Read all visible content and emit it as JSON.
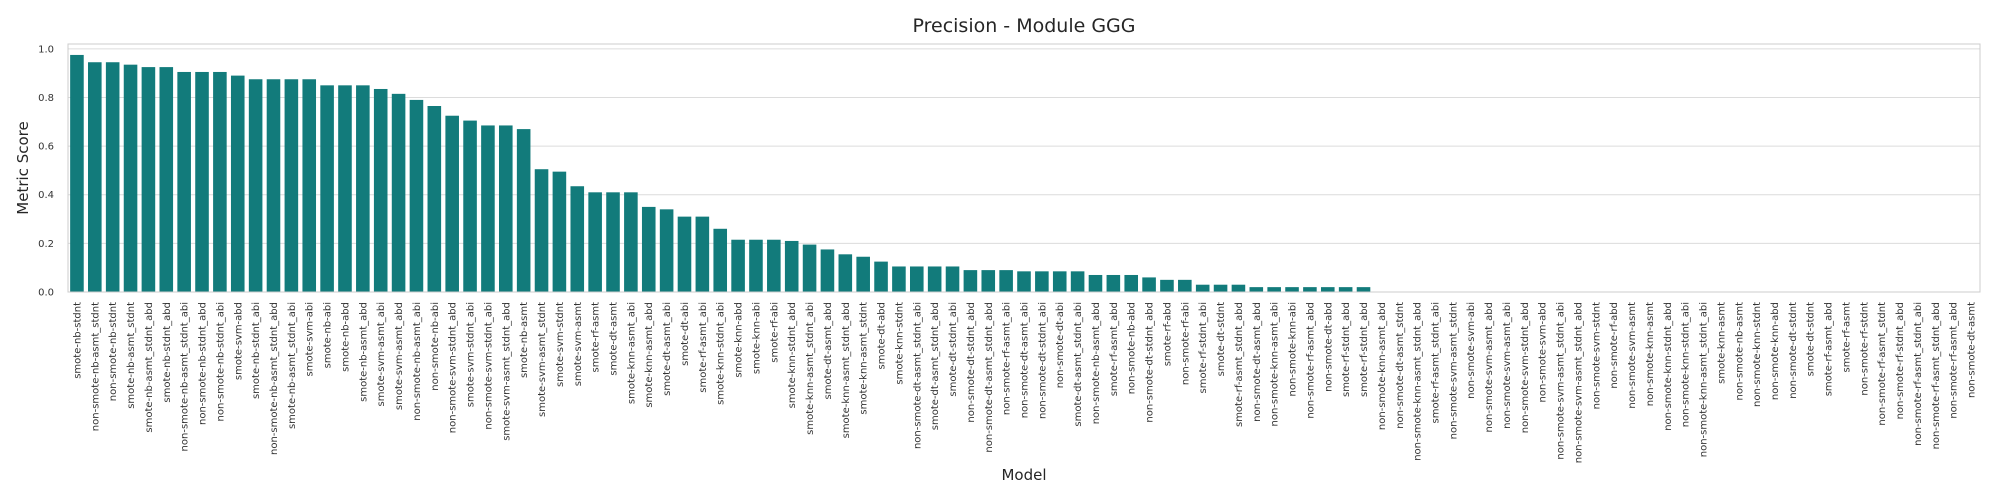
{
  "chart_data": {
    "type": "bar",
    "title": "Precision - Module GGG",
    "xlabel": "Model",
    "ylabel": "Metric Score",
    "ylim": [
      0,
      1.02
    ],
    "yticks": [
      "0.0",
      "0.2",
      "0.4",
      "0.6",
      "0.8",
      "1.0"
    ],
    "grid": true,
    "bar_color": "#127B7B",
    "categories": [
      "smote-nb-stdnt",
      "non-smote-nb-asmt_stdnt",
      "non-smote-nb-stdnt",
      "smote-nb-asmt_stdnt",
      "smote-nb-asmt_stdnt_abd",
      "smote-nb-stdnt_abd",
      "non-smote-nb-asmt_stdnt_abi",
      "non-smote-nb-stdnt_abd",
      "non-smote-nb-stdnt_abi",
      "smote-svm-abd",
      "smote-nb-stdnt_abi",
      "non-smote-nb-asmt_stdnt_abd",
      "smote-nb-asmt_stdnt_abi",
      "smote-svm-abi",
      "smote-nb-abi",
      "smote-nb-abd",
      "smote-nb-asmt_abd",
      "smote-svm-asmt_abi",
      "smote-svm-asmt_abd",
      "non-smote-nb-asmt_abi",
      "non-smote-nb-abi",
      "non-smote-svm-stdnt_abd",
      "smote-svm-stdnt_abi",
      "non-smote-svm-stdnt_abi",
      "smote-svm-asmt_stdnt_abd",
      "smote-nb-asmt",
      "smote-svm-asmt_stdnt",
      "smote-svm-stdnt",
      "smote-svm-asmt",
      "smote-rf-asmt",
      "smote-dt-asmt",
      "smote-knn-asmt_abi",
      "smote-knn-asmt_abd",
      "smote-dt-asmt_abi",
      "smote-dt-abi",
      "smote-rf-asmt_abi",
      "smote-knn-stdnt_abi",
      "smote-knn-abd",
      "smote-knn-abi",
      "smote-rf-abi",
      "smote-knn-stdnt_abd",
      "smote-knn-asmt_stdnt_abi",
      "smote-dt-asmt_abd",
      "smote-knn-asmt_stdnt_abd",
      "smote-knn-asmt_stdnt",
      "smote-dt-abd",
      "smote-knn-stdnt",
      "non-smote-dt-asmt_stdnt_abi",
      "smote-dt-asmt_stdnt_abd",
      "smote-dt-stdnt_abi",
      "non-smote-dt-stdnt_abd",
      "non-smote-dt-asmt_stdnt_abd",
      "non-smote-rf-asmt_abi",
      "non-smote-dt-asmt_abi",
      "non-smote-dt-stdnt_abi",
      "non-smote-dt-abi",
      "smote-dt-asmt_stdnt_abi",
      "non-smote-nb-asmt_abd",
      "smote-rf-asmt_abd",
      "non-smote-nb-abd",
      "non-smote-dt-stdnt_abd",
      "smote-rf-abd",
      "non-smote-rf-abi",
      "smote-rf-stdnt_abi",
      "smote-dt-stdnt",
      "smote-rf-asmt_stdnt_abd",
      "non-smote-dt-asmt_abd",
      "non-smote-knn-asmt_abi",
      "non-smote-knn-abi",
      "non-smote-rf-asmt_abd",
      "non-smote-dt-abd",
      "smote-rf-stdnt_abd",
      "smote-rf-stdnt_abd",
      "non-smote-knn-asmt_abd",
      "non-smote-dt-asmt_stdnt",
      "non-smote-knn-asmt_stdnt_abd",
      "smote-rf-asmt_stdnt_abi",
      "non-smote-svm-asmt_stdnt",
      "non-smote-svm-abi",
      "non-smote-svm-asmt_abd",
      "non-smote-svm-asmt_abi",
      "non-smote-svm-stdnt_abd",
      "non-smote-svm-abd",
      "non-smote-svm-asmt_stdnt_abi",
      "non-smote-svm-asmt_stdnt_abd",
      "non-smote-svm-stdnt",
      "non-smote-rf-abd",
      "non-smote-svm-asmt",
      "non-smote-knn-asmt",
      "non-smote-knn-stdnt_abd",
      "non-smote-knn-stdnt_abi",
      "non-smote-knn-asmt_stdnt_abi",
      "smote-knn-asmt",
      "non-smote-nb-asmt",
      "non-smote-knn-stdnt",
      "non-smote-knn-abd",
      "non-smote-dt-stdnt",
      "smote-dt-stdnt",
      "smote-rf-asmt_abd",
      "smote-rf-asmt",
      "non-smote-rf-stdnt",
      "non-smote-rf-asmt_stdnt",
      "non-smote-rf-stdnt_abd",
      "non-smote-rf-asmt_stdnt_abi",
      "non-smote-rf-asmt_stdnt_abd",
      "non-smote-rf-asmt_abd",
      "non-smote-dt-asmt"
    ],
    "values": [
      0.975,
      0.945,
      0.945,
      0.935,
      0.925,
      0.925,
      0.905,
      0.905,
      0.905,
      0.89,
      0.875,
      0.875,
      0.875,
      0.875,
      0.85,
      0.85,
      0.85,
      0.835,
      0.815,
      0.79,
      0.765,
      0.725,
      0.705,
      0.685,
      0.685,
      0.67,
      0.505,
      0.495,
      0.435,
      0.41,
      0.41,
      0.41,
      0.35,
      0.34,
      0.31,
      0.31,
      0.26,
      0.215,
      0.215,
      0.215,
      0.21,
      0.195,
      0.175,
      0.155,
      0.145,
      0.125,
      0.105,
      0.105,
      0.105,
      0.105,
      0.09,
      0.09,
      0.09,
      0.085,
      0.085,
      0.085,
      0.085,
      0.07,
      0.07,
      0.07,
      0.06,
      0.05,
      0.05,
      0.03,
      0.03,
      0.03,
      0.02,
      0.02,
      0.02,
      0.02,
      0.02,
      0.02,
      0.02,
      0,
      0,
      0,
      0,
      0,
      0,
      0,
      0,
      0,
      0,
      0,
      0,
      0,
      0,
      0,
      0,
      0,
      0,
      0,
      0,
      0,
      0,
      0,
      0,
      0,
      0,
      0,
      0,
      0,
      0,
      0,
      0,
      0,
      0
    ]
  }
}
